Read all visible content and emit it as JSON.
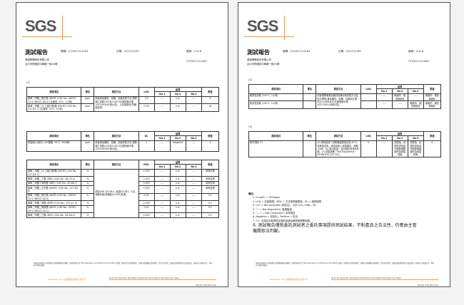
{
  "brand": {
    "logo": "SGS",
    "accent": "#f39a4a"
  },
  "pages": [
    {
      "title": "測試報告",
      "report_no": "號碼：CT/2017/11181",
      "date": "日期：2017/11/09",
      "page": "頁數：3 of 6",
      "barcode": "*CT/2017/11181*",
      "company": "長榮實業股份有限公司",
      "address": "台中市梧棲區中華路一段XX號",
      "tables": [
        {
          "section": "(1)",
          "headers": {
            "item": "測試項目",
            "unit": "單位",
            "method": "測試方法",
            "limit_label": "LOQ",
            "results": "結果",
            "no1": "No.1",
            "no2": "No.2",
            "no3": "No.3",
            "limit": "限值"
          },
          "method": "依據食品器具、容器、包裝檢驗方法-塑膠類之檢驗(102年11月13日部授食字第1021950987號公告)，以氣相層析/質譜儀檢測。",
          "rows": [
            {
              "item": "鄰苯二甲酸二異壬酯 (DINP) (CAS No.: 28553-12-0; 68515-48-0) (正庚烷, 25℃, 1小時)",
              "unit": "ppm",
              "loq": "0.5",
              "no1": "----",
              "no2": "n.d.",
              "no3": "----",
              "limit": "9"
            },
            {
              "item": "鄰苯二甲酸二(2-乙基己基)酯 (DEHP) (CAS No.: 117-81-7) (正庚烷, 25℃, 1小時)",
              "unit": "ppm",
              "loq": "0.45",
              "no1": "----",
              "no2": "n.d.",
              "no3": "----",
              "limit": "18"
            }
          ]
        },
        {
          "section": "",
          "headers": {
            "item": "測試項目",
            "unit": "單位",
            "method": "測試方法",
            "limit_label": "DL",
            "results": "結果",
            "no1": "No.1",
            "no2": "No.2",
            "no3": "No.3",
            "limit": "限值"
          },
          "method": "依據食品器具、容器、包裝檢驗方法-塑膠類之檢驗(102年11月13日部授食字第1021950987號公告)。",
          "rows": [
            {
              "item": "重金屬(以鉛計) (4%醋酸, 95℃, 30分鐘)",
              "unit": "ppm",
              "loq": "1",
              "no1": "----",
              "no2": "Negative",
              "no3": "----",
              "limit": "1"
            }
          ]
        },
        {
          "section": "",
          "headers": {
            "item": "測試項目",
            "unit": "單位",
            "method": "測試方法",
            "limit_label": "MDL",
            "results": "結果",
            "no1": "No.1",
            "no2": "No.2",
            "no3": "No.3",
            "limit": "限值"
          },
          "method": "依據CNS 15138-1 (民國101年)，以氣相層析儀/質譜儀(GC/MS)檢測。",
          "rows": [
            {
              "item": "鄰苯二甲酸二(2-乙基己基)酯 (DEHP) (CAS No.: 117-81-7)",
              "unit": "%",
              "loq": "0.003",
              "no1": "----",
              "no2": "n.d.",
              "no3": "----",
              "limit": "參考檢測"
            },
            {
              "item": "鄰苯二甲酸二丁酯 (DBP) (CAS No.: 84-74-2)",
              "unit": "%",
              "loq": "0.003",
              "no1": "----",
              "no2": "n.d.",
              "no3": "----",
              "limit": "參考檢測"
            },
            {
              "item": "鄰苯二甲酸丁苯甲酯 (BBP) (CAS No.: 85-68-7)",
              "unit": "%",
              "loq": "0.003",
              "no1": "----",
              "no2": "n.d.",
              "no3": "----",
              "limit": "參考檢測"
            },
            {
              "item": "鄰苯二甲酸二正辛酯 (DNOP) (CAS No.: 117-84-0)",
              "unit": "%",
              "loq": "0.003",
              "no1": "----",
              "no2": "n.d.",
              "no3": "----",
              "limit": "參考檢測"
            },
            {
              "item": "鄰苯二甲酸二異壬酯 (DINP) (CAS No.: 28553-12-0; 68515-48-0)",
              "unit": "%",
              "loq": "0.01",
              "no1": "----",
              "no2": "n.d.",
              "no3": "----",
              "limit": "0.1"
            },
            {
              "item": "鄰苯二甲酸二甲酯 (DMP) (CAS No.: 131-11-3)",
              "unit": "%",
              "loq": "0.003",
              "no1": "----",
              "no2": "n.d.",
              "no3": "----",
              "limit": "0.1"
            },
            {
              "item": "鄰苯二甲酸二異癸酯 (DIDP) (CAS No.: 26761-40-0; 68515-49-1)",
              "unit": "%",
              "loq": "0.01",
              "no1": "----",
              "no2": "n.d.",
              "no3": "----",
              "limit": "0.1"
            },
            {
              "item": "鄰苯二甲酸二乙酯 (DEP) (CAS No.: 84-66-2)",
              "unit": "%",
              "loq": "0.003",
              "no1": "----",
              "no2": "n.d.",
              "no3": "----",
              "limit": "0.1"
            }
          ]
        }
      ]
    },
    {
      "title": "測試報告",
      "report_no": "號碼：CT/2017/11181",
      "date": "日期：2017/11/09",
      "page": "頁數：4 of 6",
      "barcode": "*CT/2017/11181*",
      "company": "長榮實業股份有限公司",
      "address": "台中市梧棲區中華路一段XX號",
      "tables": [
        {
          "section": "(2)",
          "headers": {
            "item": "測試項目",
            "unit": "單位",
            "method": "測試方法",
            "limit_label": "LOQ",
            "results": "結果",
            "no1": "No.1",
            "no2": "No.2",
            "no3": "No.3",
            "limit": "限值"
          },
          "method": "依據塑膠類食品器具容器包裝試驗方法暨衛生標準(食品器具、容器、包裝衛生標準)(102年8月20日部授食字第1021350146號公告)。",
          "rows": [
            {
              "item": "耐熱性試驗 (120℃, 1小時)",
              "unit": "-",
              "loq": "-",
              "no1": "----",
              "no2": "無變形、褪色無變化",
              "no3": "----",
              "limit": "無變形、褪色無變化"
            },
            {
              "item": "耐熱性試驗 (100℃, 1小時)",
              "unit": "-",
              "loq": "-",
              "no1": "----",
              "no2": "----",
              "no3": "無變形、褪色無變化",
              "limit": "無變形、褪色無變化"
            }
          ]
        },
        {
          "section": "(3)",
          "headers": {
            "item": "測試項目",
            "unit": "單位",
            "method": "測試方法",
            "limit_label": "LOQ",
            "results": "結果",
            "no1": "No.1",
            "no2": "No.2",
            "no3": "No.3",
            "limit": "限值"
          },
          "method": "(a) 將樣品放入試驗機溫度設定為-20℃，待其穩定後，將樣品放入試驗機中，靜置1小時。(b) 取出樣品，並目視檢查樣品外觀。(c) 試驗設備 / Test Equipment：KSON/THS-G4T-100。",
          "rows": [
            {
              "item": "耐冷測試 (*)",
              "unit": "-",
              "loq": "0",
              "no1": "----",
              "no2": "試驗後，目視檢查樣品外觀無明顯變形及破裂現象",
              "no3": "試驗後，目視檢查樣品外觀無明顯變形及破裂現象",
              "limit": "0"
            }
          ]
        }
      ],
      "notes_title": "備註：",
      "notes": [
        "1. 0.1wt% = 1000ppm",
        "2. LOQ = 定量極限；MDL = 方法偵測極限值；DL = 偵測極限",
        "3. n.d. = Not Detected (未檢出)；小於 LOQ / MDL / DL",
        "4. \"-\" = Not Regulated / 無規格值",
        "5. \"----\" = Not Conducted / 未測項目",
        "6. Negative = 未檢出；Positive = 檢出",
        "7. (*)：此項目未取得衛生福利部食品藥物管理署認證。"
      ],
      "note_big": "8. 測試報告僅就委託測試者之委託事項提供測試結果，不對產品之合法性，仍應由主管機關依法判斷。"
    }
  ],
  "footer": {
    "disclaimer": "本報告係依據本公司所載明之通用服務條款所簽發，其條款內容可至 http://www.sgs.com.tw/Terms-and-Conditions 查閱，並請特別注意有關責任、賠償以及管轄權之限制規定。除非另有說明，此報告結果僅對測試之樣品負責。未經本公司書面許可，本報告不得部分複製。",
    "company": "SGS Taiwan Ltd. 台灣檢驗科技股份有限公司",
    "address": "No.31, Wu Chyuan Rd., New Taipei Industrial Park, Wu Ku District, New Taipei City, Taiwan",
    "member": "Member of the SGS Group"
  }
}
